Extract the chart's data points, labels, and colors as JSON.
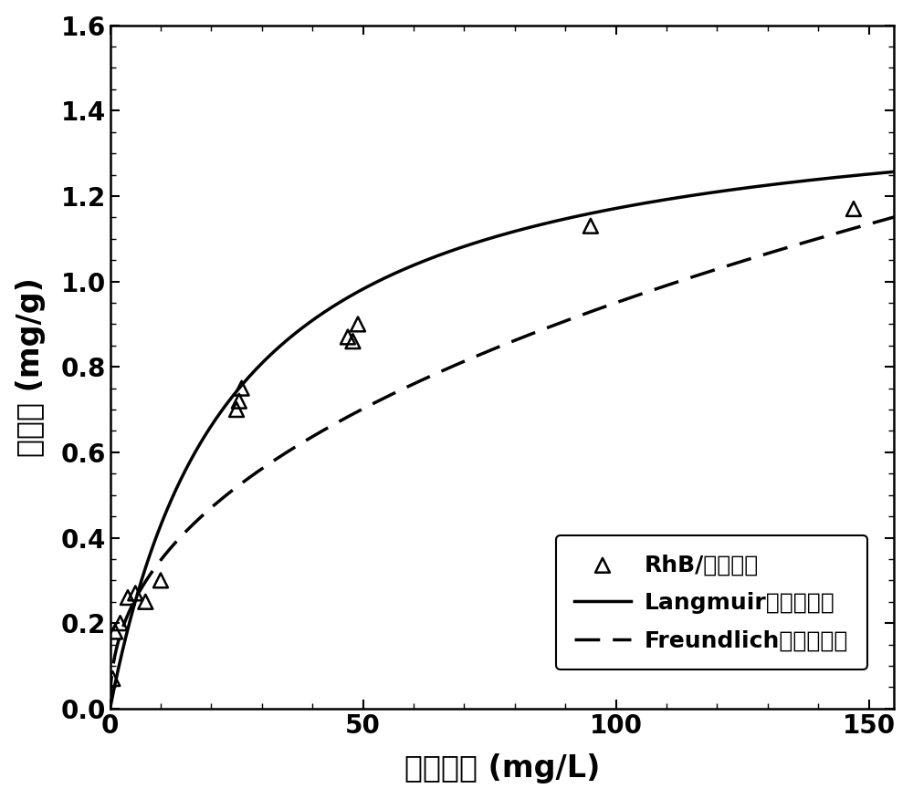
{
  "scatter_x": [
    0.5,
    1.0,
    2.0,
    3.5,
    5.0,
    7.0,
    10.0,
    25.0,
    25.5,
    26.0,
    47.0,
    48.0,
    49.0,
    95.0,
    147.0
  ],
  "scatter_y": [
    0.07,
    0.18,
    0.2,
    0.26,
    0.27,
    0.25,
    0.3,
    0.7,
    0.72,
    0.75,
    0.87,
    0.86,
    0.9,
    1.13,
    1.17
  ],
  "langmuir_qmax": 1.45,
  "langmuir_KL": 0.042,
  "freundlich_KF": 0.127,
  "freundlich_n": 0.437,
  "x_range": [
    0,
    155
  ],
  "y_range": [
    0.0,
    1.6
  ],
  "xlabel": "平衡浓度 (mg/L)",
  "ylabel": "吸附量 (mg/g)",
  "legend_scatter": "RhB/利蛇纹石",
  "legend_langmuir": "Langmuir吸附等温线",
  "legend_freundlich": "Freundlich吸附等温线",
  "line_color": "#000000",
  "scatter_color": "#000000",
  "background_color": "#ffffff",
  "tick_fontsize": 20,
  "label_fontsize": 24,
  "legend_fontsize": 18,
  "line_width": 2.5
}
